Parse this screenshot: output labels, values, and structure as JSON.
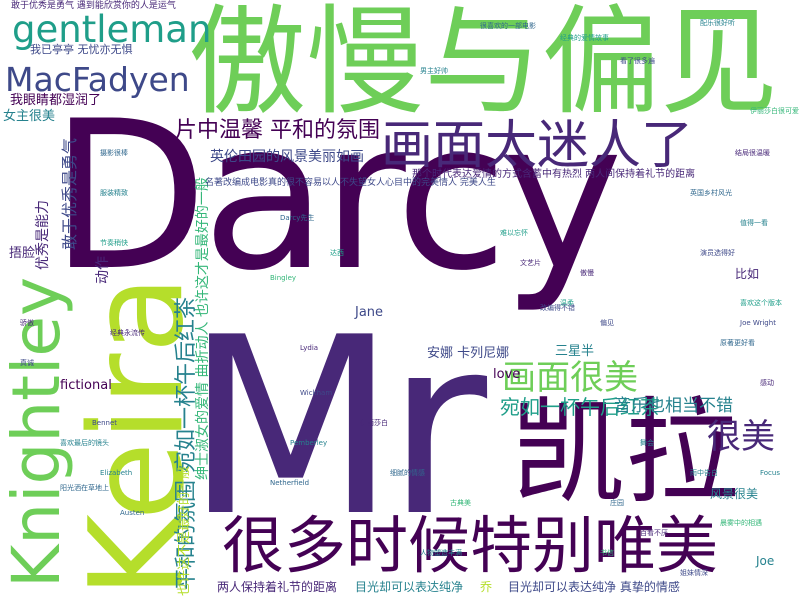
{
  "palette": {
    "dark_purple": "#440154",
    "purple": "#482878",
    "indigo": "#3e4989",
    "blue": "#31688e",
    "teal": "#26828e",
    "green_teal": "#1f9e89",
    "green": "#35b779",
    "light_green": "#6ece58",
    "yellow_green": "#b5de2b",
    "yellow": "#fde725"
  },
  "words": {
    "darcy": "Darcy",
    "mr": "Mr",
    "keira": "Keira",
    "knightley": "Knightley",
    "pride_and_prejudice": "傲慢与偏见",
    "kaila": "凯拉",
    "often_beautiful": "很多时候特别唯美",
    "picture_charming": "画面太迷人了",
    "gentleman": "gentleman",
    "macfadyen": "MacFadyen",
    "picture_beautiful": "画面很美",
    "very_beautiful": "很美",
    "warm_peaceful": "片中温馨 平和的氛围",
    "countryside": "英伦田园的风景美丽如画",
    "afternoon_tea_h": "宛如一杯午后红茶",
    "music": "音乐也相当不错",
    "afternoon_tea_v": "平和的氛围 宛如一杯午后红茶",
    "gentry_v": "绅士淑女的爱情 曲折动人 也许这才是最好的一般",
    "also_best_v": "也许这不是最好的一般",
    "brave_v": "敢于优秀是勇气",
    "ability_v": "优秀是能力",
    "eyes_wet": "我眼睛都湿润了",
    "slim": "我已亭亭 无忧亦无惧",
    "brave_top": "敢于优秀是勇气 遇到能欣赏你的人是运气",
    "actress": "女主很美",
    "cover_face": "捂脸",
    "action_v": "动作",
    "anna_karenina": "安娜 卡列尼娜",
    "three_half": "三星半",
    "love": "love",
    "fictional": "fictional",
    "jane": "Jane",
    "for_example": "比如",
    "scenery": "风景很美",
    "joe": "Joe",
    "distance": "两人保持着礼节的距离",
    "gaze": "目光却可以表达纯净",
    "gaze_true": "目光却可以表达纯净 真挚的情感",
    "qiao": "乔",
    "era_love": "那个时代表达爱情的方式含蓄中有热烈 两人间保持着礼节的距离",
    "famous_work": "名著改编成电影真的很不容易以人不失望女人心目中的完美情人 完美人生",
    "small_1": "男主好帅",
    "small_2": "很喜欢的一部电影",
    "small_3": "经典的爱情故事",
    "small_4": "看了很多遍",
    "small_5": "配乐很好听",
    "small_6": "伊丽莎白很可爱",
    "small_7": "结局很温暖",
    "small_8": "英国乡村风光",
    "small_9": "值得一看",
    "small_10": "演员选得好",
    "small_11": "喜欢这个版本",
    "small_12": "原著更好看",
    "small_13": "感动",
    "small_14": "雨中告白",
    "small_15": "晨雾中的相遇",
    "small_16": "姐妹情深",
    "small_17": "摄影很棒",
    "small_18": "服装精致",
    "small_19": "节奏稍快",
    "small_20": "经典永流传",
    "small_21": "Bennet",
    "small_22": "Elizabeth",
    "small_23": "Austen",
    "small_24": "Bingley",
    "small_25": "Lydia",
    "small_26": "Wickham",
    "small_27": "Pemberley",
    "small_28": "Netherfield",
    "small_29": "温柔",
    "small_30": "傲慢",
    "small_31": "偏见",
    "small_32": "舞会",
    "small_33": "庄园",
    "small_34": "书信",
    "small_35": "骄傲",
    "small_36": "真诚",
    "small_37": "喜欢最后的镜头",
    "small_38": "阳光洒在草地上",
    "small_39": "难以忘怀",
    "small_40": "文艺片",
    "small_41": "改编得不错",
    "small_42": "人物塑造丰满",
    "small_43": "细腻的情感",
    "small_44": "古典美",
    "small_45": "百看不厌",
    "small_46": "Joe Wright",
    "small_47": "Focus",
    "small_48": "Darcy先生",
    "small_49": "达西",
    "small_50": "伊丽莎白"
  }
}
